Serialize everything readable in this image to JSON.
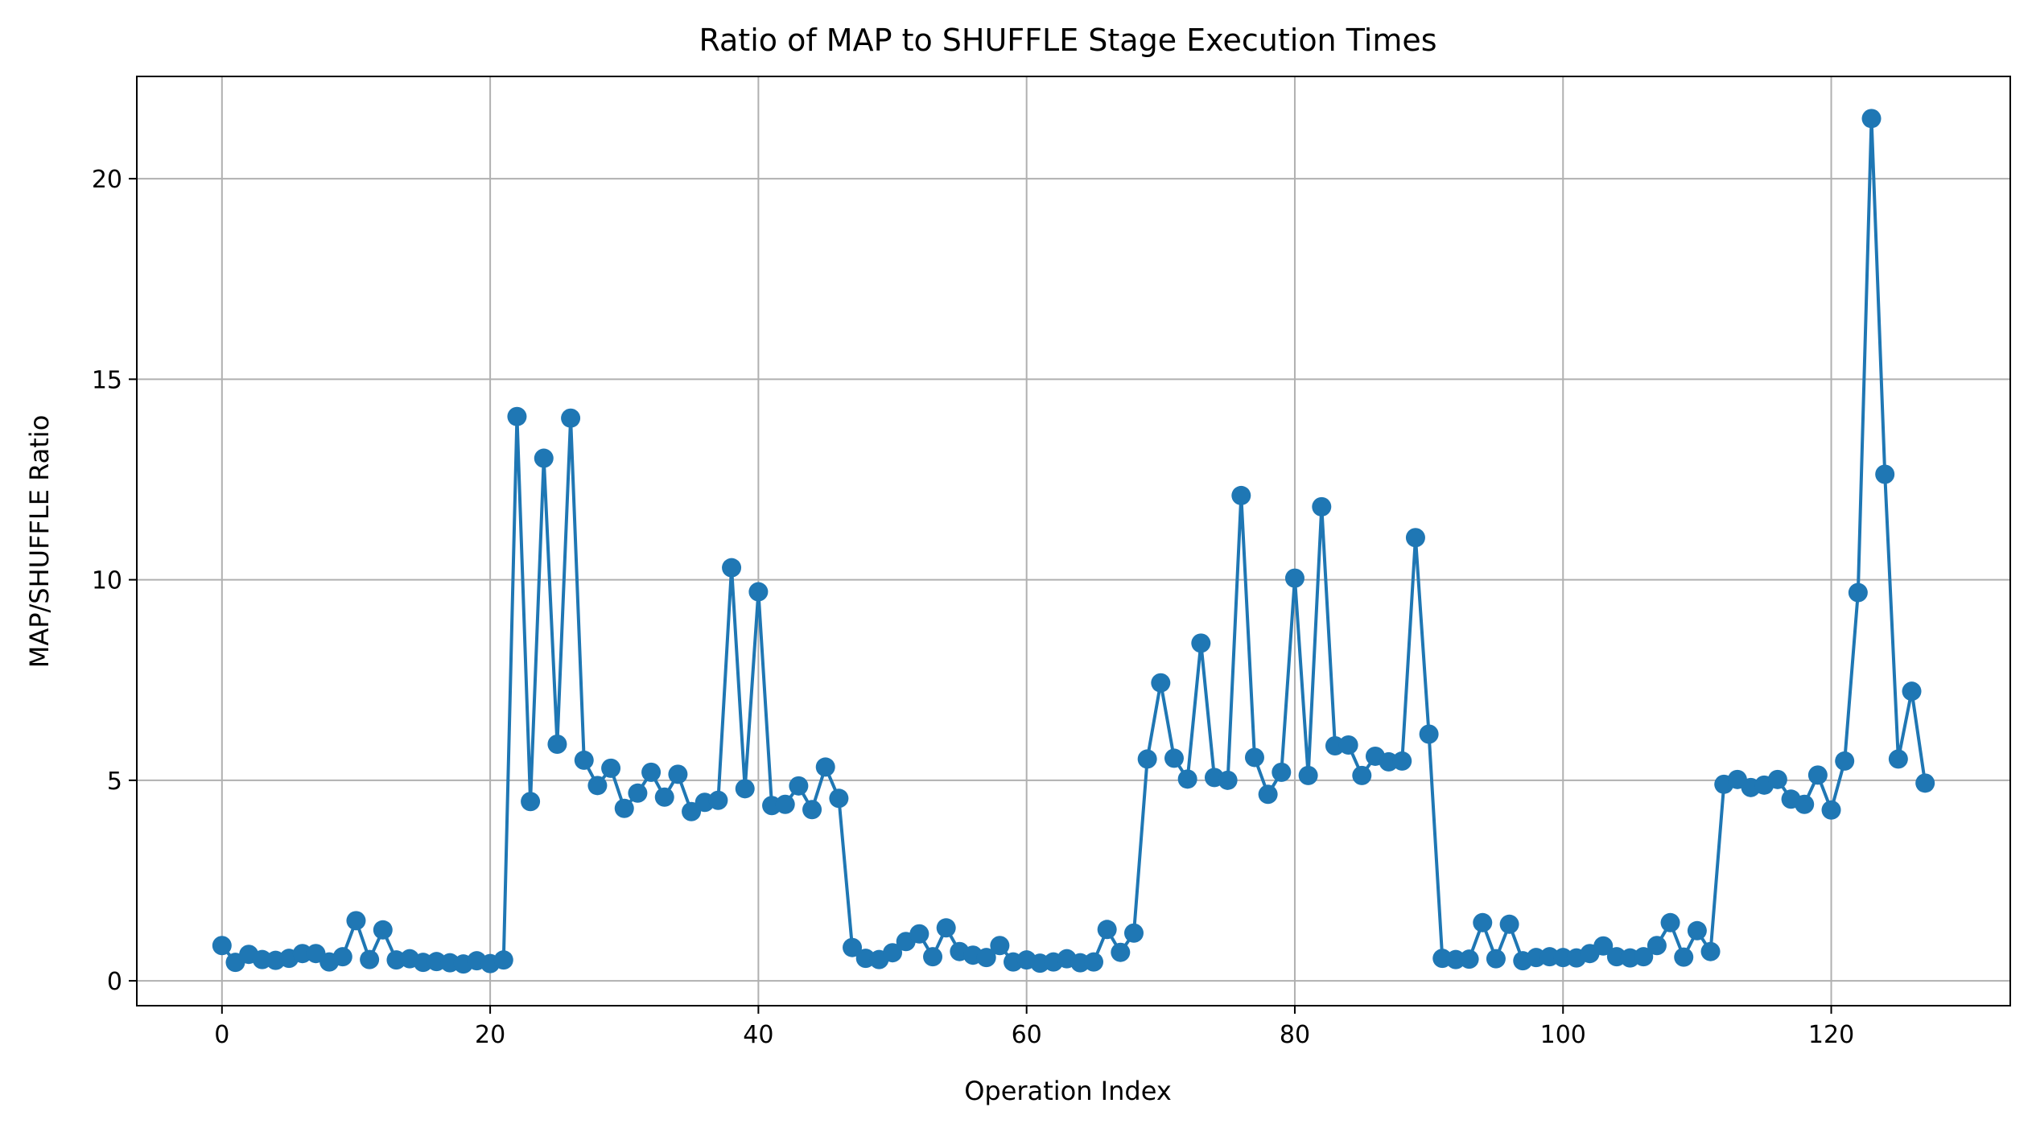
{
  "chart_data": {
    "type": "line",
    "title": "Ratio of MAP to SHUFFLE Stage Execution Times",
    "xlabel": "Operation Index",
    "ylabel": "MAP/SHUFFLE Ratio",
    "xlim": [
      -6.35,
      133.35
    ],
    "ylim": [
      -0.62,
      22.55
    ],
    "xticks": [
      0,
      20,
      40,
      60,
      80,
      100,
      120
    ],
    "xtick_labels": [
      "0",
      "20",
      "40",
      "60",
      "80",
      "100",
      "120"
    ],
    "yticks": [
      0,
      5,
      10,
      15,
      20
    ],
    "ytick_labels": [
      "0",
      "5",
      "10",
      "15",
      "20"
    ],
    "grid": true,
    "colors": {
      "series": "#1f77b4",
      "grid": "#b0b0b0"
    },
    "series": [
      {
        "marker": "circle",
        "x": [
          0,
          1,
          2,
          3,
          4,
          5,
          6,
          7,
          8,
          9,
          10,
          11,
          12,
          13,
          14,
          15,
          16,
          17,
          18,
          19,
          20,
          21,
          22,
          23,
          24,
          25,
          26,
          27,
          28,
          29,
          30,
          31,
          32,
          33,
          34,
          35,
          36,
          37,
          38,
          39,
          40,
          41,
          42,
          43,
          44,
          45,
          46,
          47,
          48,
          49,
          50,
          51,
          52,
          53,
          54,
          55,
          56,
          57,
          58,
          59,
          60,
          61,
          62,
          63,
          64,
          65,
          66,
          67,
          68,
          69,
          70,
          71,
          72,
          73,
          74,
          75,
          76,
          77,
          78,
          79,
          80,
          81,
          82,
          83,
          84,
          85,
          86,
          87,
          88,
          89,
          90,
          91,
          92,
          93,
          94,
          95,
          96,
          97,
          98,
          99,
          100,
          101,
          102,
          103,
          104,
          105,
          106,
          107,
          108,
          109,
          110,
          111,
          112,
          113,
          114,
          115,
          116,
          117,
          118,
          119,
          120,
          121,
          122,
          123,
          124,
          125,
          126,
          127
        ],
        "y": [
          0.88,
          0.46,
          0.66,
          0.53,
          0.51,
          0.56,
          0.68,
          0.68,
          0.47,
          0.6,
          1.5,
          0.53,
          1.27,
          0.52,
          0.55,
          0.46,
          0.48,
          0.45,
          0.42,
          0.5,
          0.43,
          0.52,
          14.07,
          4.47,
          13.03,
          5.9,
          14.03,
          5.5,
          4.87,
          5.3,
          4.3,
          4.68,
          5.2,
          4.58,
          5.15,
          4.22,
          4.45,
          4.5,
          10.3,
          4.79,
          9.7,
          4.37,
          4.4,
          4.86,
          4.27,
          5.33,
          4.55,
          0.83,
          0.56,
          0.53,
          0.7,
          0.98,
          1.17,
          0.6,
          1.32,
          0.73,
          0.64,
          0.58,
          0.88,
          0.47,
          0.52,
          0.44,
          0.47,
          0.55,
          0.45,
          0.47,
          1.28,
          0.71,
          1.19,
          5.53,
          7.43,
          5.55,
          5.03,
          8.42,
          5.07,
          5.0,
          12.1,
          5.57,
          4.65,
          5.2,
          10.04,
          5.12,
          11.82,
          5.86,
          5.88,
          5.12,
          5.6,
          5.46,
          5.48,
          11.05,
          6.15,
          0.56,
          0.53,
          0.54,
          1.45,
          0.55,
          1.41,
          0.5,
          0.58,
          0.6,
          0.58,
          0.57,
          0.68,
          0.87,
          0.6,
          0.57,
          0.6,
          0.88,
          1.45,
          0.59,
          1.25,
          0.73,
          4.9,
          5.02,
          4.82,
          4.88,
          5.02,
          4.53,
          4.4,
          5.13,
          4.26,
          5.48,
          9.68,
          21.5,
          12.63,
          5.53,
          7.22,
          4.93
        ]
      }
    ]
  }
}
